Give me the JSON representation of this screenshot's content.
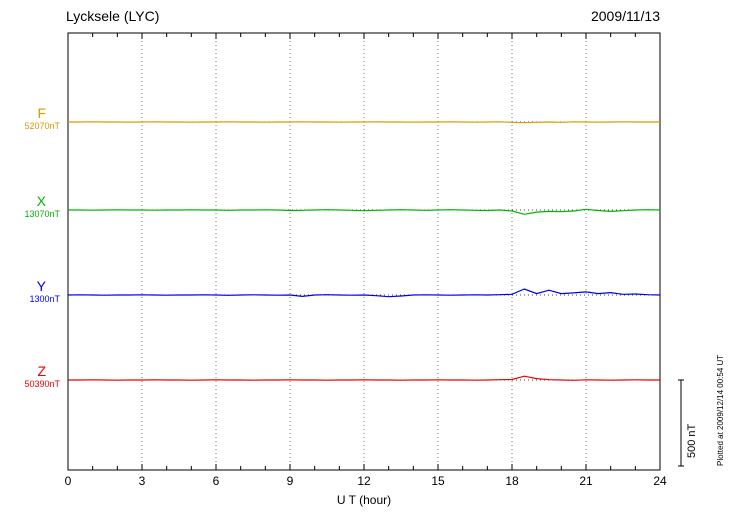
{
  "header": {
    "title": "Lycksele (LYC)",
    "date": "2009/11/13"
  },
  "axis": {
    "xlabel": "U T (hour)"
  },
  "annotations": {
    "scale_label": "500 nT",
    "plotted_at": "Plotted at 2009/12/14 00:54 UT"
  },
  "chart_data": {
    "type": "line",
    "title": "Lycksele (LYC)",
    "subtitle": "2009/11/13",
    "xlabel": "U T (hour)",
    "x_range": [
      0,
      24
    ],
    "x_ticks": [
      0,
      3,
      6,
      9,
      12,
      15,
      18,
      21,
      24
    ],
    "x_step_hours": 0.5,
    "grid": "vertical-dotted-every-3h",
    "scale_bar_nT": 500,
    "series": [
      {
        "name": "F",
        "baseline_label": "52070nT",
        "baseline_nT": 52070,
        "color": "#dd9900",
        "deviations_nT": [
          0,
          0,
          1,
          0,
          0,
          -1,
          0,
          1,
          0,
          0,
          -1,
          0,
          0,
          1,
          0,
          0,
          -1,
          0,
          0,
          1,
          0,
          0,
          -1,
          0,
          0,
          1,
          0,
          0,
          -1,
          0,
          0,
          1,
          0,
          -1,
          0,
          1,
          -2,
          -4,
          -2,
          0,
          -2,
          1,
          0,
          -1,
          0,
          1,
          0,
          0,
          0
        ]
      },
      {
        "name": "X",
        "baseline_label": "13070nT",
        "baseline_nT": 13070,
        "color": "#00b300",
        "deviations_nT": [
          0,
          0,
          -1,
          0,
          1,
          0,
          0,
          -1,
          0,
          0,
          1,
          0,
          0,
          -2,
          0,
          0,
          1,
          0,
          -3,
          -2,
          0,
          2,
          0,
          -2,
          -4,
          -2,
          0,
          2,
          0,
          -2,
          0,
          2,
          0,
          -2,
          -3,
          0,
          -6,
          -25,
          -12,
          -8,
          -10,
          -6,
          4,
          -3,
          -8,
          -4,
          0,
          2,
          0
        ]
      },
      {
        "name": "Y",
        "baseline_label": "1300nT",
        "baseline_nT": 1300,
        "color": "#0000ee",
        "deviations_nT": [
          0,
          1,
          0,
          -1,
          0,
          0,
          1,
          0,
          -1,
          0,
          0,
          1,
          0,
          -2,
          0,
          1,
          0,
          -1,
          0,
          -8,
          0,
          2,
          0,
          -1,
          0,
          -4,
          -10,
          -6,
          0,
          1,
          0,
          -1,
          0,
          1,
          0,
          2,
          4,
          35,
          8,
          28,
          8,
          12,
          18,
          8,
          14,
          4,
          6,
          2,
          0
        ]
      },
      {
        "name": "Z",
        "baseline_label": "50390nT",
        "baseline_nT": 50390,
        "color": "#ee0000",
        "deviations_nT": [
          0,
          0,
          1,
          0,
          -1,
          0,
          0,
          1,
          0,
          0,
          -1,
          0,
          1,
          0,
          0,
          -1,
          0,
          0,
          1,
          0,
          0,
          -1,
          0,
          0,
          1,
          0,
          0,
          -1,
          0,
          0,
          1,
          0,
          0,
          -1,
          0,
          2,
          3,
          22,
          8,
          2,
          0,
          -2,
          1,
          0,
          -1,
          0,
          1,
          0,
          0
        ]
      }
    ]
  }
}
